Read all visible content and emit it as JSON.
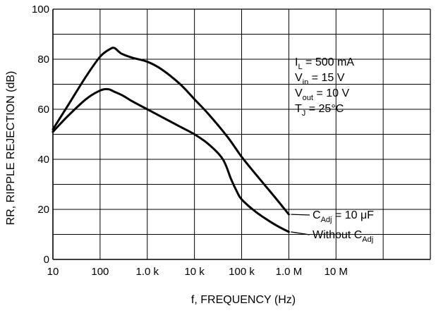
{
  "chart_data": {
    "type": "line",
    "title": "",
    "xlabel": "f, FREQUENCY (Hz)",
    "ylabel": "RR, RIPPLE REJECTION (dB)",
    "xscale": "log",
    "xlim": [
      10,
      1000000000
    ],
    "ylim": [
      0,
      100
    ],
    "grid": true,
    "x_tick_labels": [
      {
        "value": 10,
        "label": "10"
      },
      {
        "value": 100,
        "label": "100"
      },
      {
        "value": 1000,
        "label": "1.0 k"
      },
      {
        "value": 10000,
        "label": "10 k"
      },
      {
        "value": 100000,
        "label": "100 k"
      },
      {
        "value": 1000000,
        "label": "1.0 M"
      },
      {
        "value": 10000000,
        "label": "10 M"
      }
    ],
    "y_tick_labels": [
      {
        "value": 0,
        "label": "0"
      },
      {
        "value": 20,
        "label": "20"
      },
      {
        "value": 40,
        "label": "40"
      },
      {
        "value": 60,
        "label": "60"
      },
      {
        "value": 80,
        "label": "80"
      },
      {
        "value": 100,
        "label": "100"
      }
    ],
    "conditions": [
      {
        "main": "I",
        "sub": "L",
        "rest": " = 500 mA"
      },
      {
        "main": "V",
        "sub": "in",
        "rest": " = 15 V"
      },
      {
        "main": "V",
        "sub": "out",
        "rest": " = 10 V"
      },
      {
        "main": "T",
        "sub": "J",
        "rest": " = 25°C"
      }
    ],
    "series": [
      {
        "label_parts": {
          "pre": "C",
          "sub": "Adj",
          "post": " = 10 μF"
        },
        "x": [
          10,
          20,
          50,
          100,
          160,
          200,
          250,
          300,
          500,
          1000,
          2000,
          5000,
          10000,
          20000,
          50000,
          100000,
          200000,
          500000,
          1000000
        ],
        "y": [
          52,
          61,
          73,
          81,
          84,
          84.5,
          83,
          82,
          80.5,
          79,
          76,
          70,
          64,
          58,
          49,
          41,
          34,
          25,
          18
        ]
      },
      {
        "label_parts": {
          "pre": "Without C",
          "sub": "Adj",
          "post": ""
        },
        "x": [
          10,
          20,
          50,
          100,
          150,
          200,
          300,
          500,
          1000,
          2000,
          5000,
          10000,
          20000,
          40000,
          60000,
          80000,
          100000,
          200000,
          500000,
          1000000
        ],
        "y": [
          51,
          57,
          64,
          67.5,
          68,
          67,
          65.5,
          63,
          60,
          57,
          53,
          50,
          46,
          40,
          32,
          27,
          24,
          19,
          14,
          11
        ]
      }
    ]
  }
}
